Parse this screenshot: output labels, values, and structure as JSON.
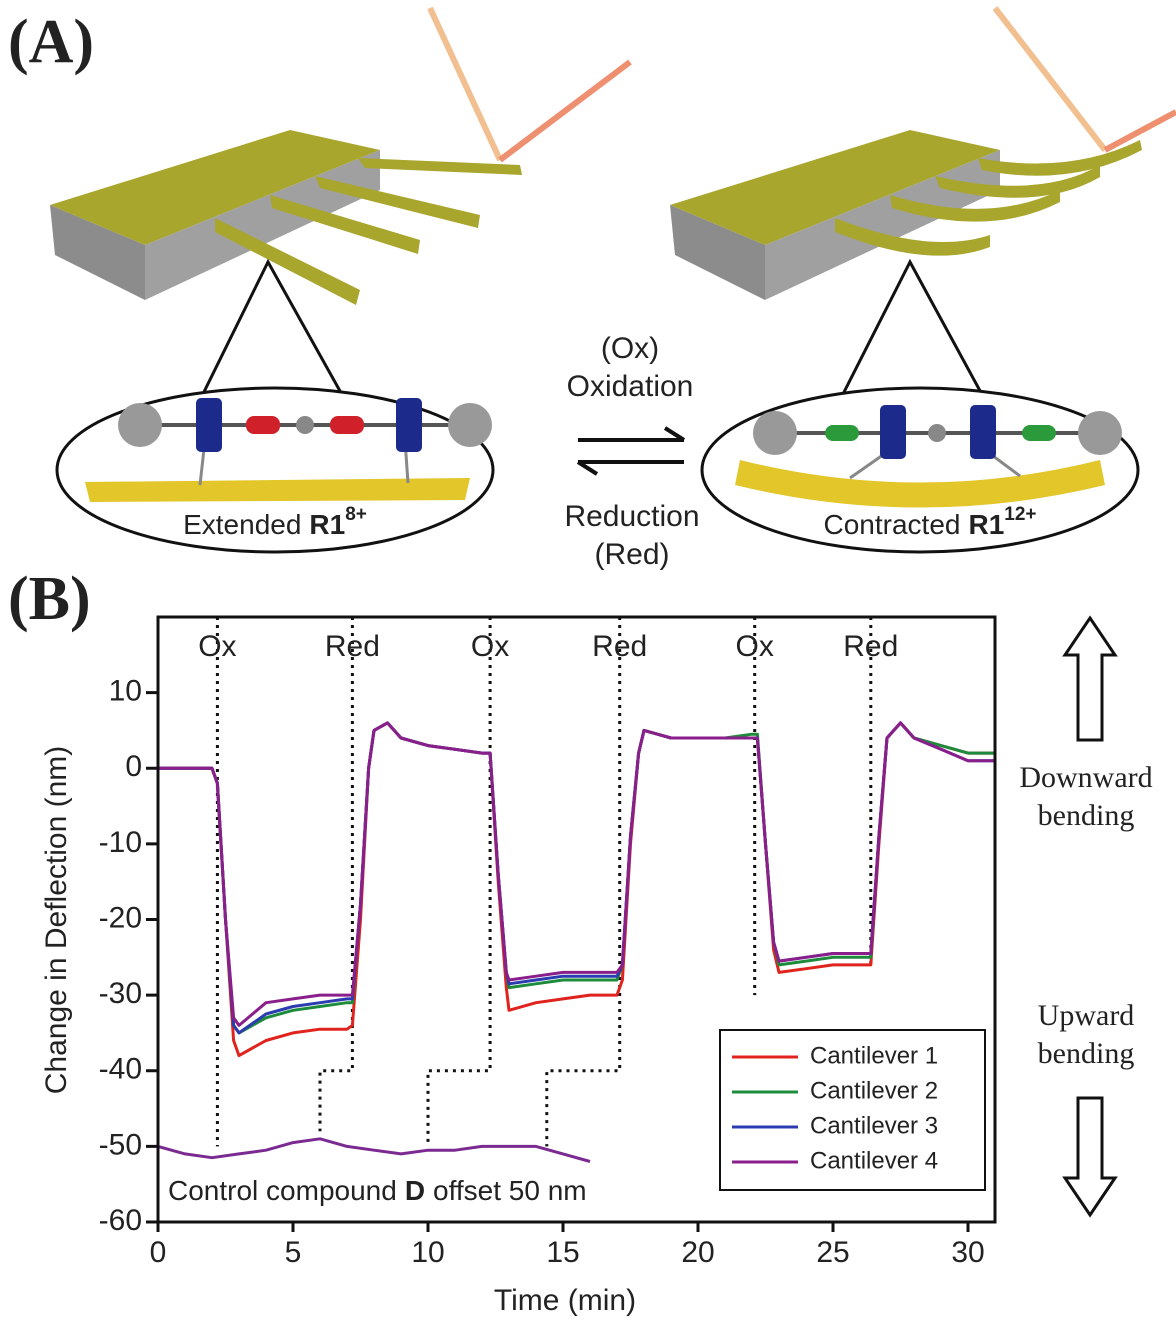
{
  "diagram": {
    "panel_a": "(A)",
    "ox_abbrev": "(Ox)",
    "oxidation": "Oxidation",
    "reduction": "Reduction",
    "red_abbrev": "(Red)",
    "extended": {
      "text": "Extended",
      "compound": "R1",
      "charge": "8+"
    },
    "contracted": {
      "text": "Contracted",
      "compound": "R1",
      "charge": "12+"
    }
  },
  "panel_b": "(B)",
  "side_labels": {
    "downward": [
      "Downward",
      "bending"
    ],
    "upward": [
      "Upward",
      "bending"
    ]
  },
  "chart_data": {
    "type": "line",
    "xlabel": "Time (min)",
    "ylabel": "Change in Deflection (nm)",
    "xlim": [
      0,
      31
    ],
    "ylim": [
      -60,
      20
    ],
    "xticks": [
      0,
      5,
      10,
      15,
      20,
      25,
      30
    ],
    "yticks": [
      -60,
      -50,
      -40,
      -30,
      -20,
      -10,
      0,
      10
    ],
    "legend": "lower right",
    "x": [
      0,
      1,
      2,
      2.2,
      2.5,
      2.8,
      3,
      4,
      5,
      6,
      7,
      7.2,
      7.5,
      7.8,
      8,
      8.5,
      9,
      10,
      11,
      12,
      12.3,
      12.6,
      12.9,
      13,
      14,
      15,
      16,
      17,
      17.2,
      17.5,
      17.8,
      18,
      18.5,
      19,
      20,
      21,
      22,
      22.2,
      22.5,
      22.8,
      23,
      24,
      25,
      26,
      26.4,
      26.7,
      27,
      27.5,
      28,
      29,
      30,
      31
    ],
    "series": [
      {
        "name": "Cantilever 1",
        "color": "#e0231c",
        "values": [
          0,
          0,
          0,
          -2,
          -20,
          -36,
          -38,
          -36,
          -35,
          -34.5,
          -34.5,
          -34,
          -20,
          0,
          5,
          6,
          4,
          3,
          2.5,
          2,
          2,
          -15,
          -29,
          -32,
          -31,
          -30.5,
          -30,
          -30,
          -28,
          -10,
          2,
          5,
          4.5,
          4,
          4,
          4,
          4,
          4,
          -10,
          -24,
          -27,
          -26.5,
          -26,
          -26,
          -26,
          -10,
          4,
          6,
          4,
          3,
          2,
          2
        ]
      },
      {
        "name": "Cantilever 2",
        "color": "#1c8c3c",
        "values": [
          0,
          0,
          0,
          -2,
          -20,
          -34,
          -35,
          -33,
          -32,
          -31.5,
          -31,
          -31,
          -18,
          0,
          5,
          6,
          4,
          3,
          2.5,
          2,
          2,
          -14,
          -27,
          -29,
          -28.5,
          -28,
          -28,
          -28,
          -26,
          -9,
          2,
          5,
          4.5,
          4,
          4,
          4,
          4.5,
          4.5,
          -10,
          -23,
          -26,
          -25.5,
          -25,
          -25,
          -25,
          -9,
          4,
          6,
          4,
          3,
          2,
          2
        ]
      },
      {
        "name": "Cantilever 3",
        "color": "#2a3cb0",
        "values": [
          0,
          0,
          0,
          -2,
          -20,
          -34,
          -35,
          -32.5,
          -31.5,
          -31,
          -30.5,
          -30.5,
          -18,
          0,
          5,
          6,
          4,
          3,
          2.5,
          2,
          2,
          -14,
          -27,
          -28.5,
          -28,
          -27.5,
          -27.5,
          -27.5,
          -26,
          -9,
          2,
          5,
          4.5,
          4,
          4,
          4,
          4,
          4,
          -10,
          -23,
          -25.5,
          -25,
          -24.5,
          -24.5,
          -24.5,
          -9,
          4,
          6,
          4,
          2.5,
          1,
          1
        ]
      },
      {
        "name": "Cantilever 4",
        "color": "#8a1f8c",
        "values": [
          0,
          0,
          0,
          -2,
          -20,
          -33,
          -34,
          -31,
          -30.5,
          -30,
          -30,
          -30,
          -18,
          0,
          5,
          6,
          4,
          3,
          2.5,
          2,
          2,
          -14,
          -27,
          -28,
          -27.5,
          -27,
          -27,
          -27,
          -26,
          -9,
          2,
          5,
          4.5,
          4,
          4,
          4,
          4,
          4,
          -10,
          -23,
          -25.5,
          -25,
          -24.5,
          -24.5,
          -24.5,
          -9,
          4,
          6,
          4,
          2.5,
          1,
          1
        ]
      }
    ],
    "control": {
      "color": "#7a2a90",
      "x": [
        0,
        1,
        2,
        3,
        4,
        5,
        6,
        7,
        8,
        9,
        10,
        11,
        12,
        13,
        14,
        15,
        16
      ],
      "values": [
        -50,
        -51,
        -51.5,
        -51,
        -50.5,
        -49.5,
        -49,
        -50,
        -50.5,
        -51,
        -50.5,
        -50.5,
        -50,
        -50,
        -50,
        -51,
        -52
      ]
    },
    "control_label": {
      "before": "Control compound",
      "bold": "D",
      "after": "offset 50 nm"
    },
    "events": [
      {
        "label": "Ox",
        "line_x": [
          2.2,
          2.2
        ],
        "line_y": [
          20,
          -50
        ]
      },
      {
        "label": "Red",
        "line_x": [
          7.2,
          7.2,
          6,
          6
        ],
        "line_y": [
          20,
          -40,
          -40,
          -48
        ]
      },
      {
        "label": "Ox",
        "line_x": [
          12.3,
          12.3,
          10,
          10
        ],
        "line_y": [
          20,
          -40,
          -40,
          -50
        ]
      },
      {
        "label": "Red",
        "line_x": [
          17.1,
          17.1,
          14.4,
          14.4
        ],
        "line_y": [
          20,
          -40,
          -40,
          -50
        ]
      },
      {
        "label": "Ox",
        "line_x": [
          22.1,
          22.1
        ],
        "line_y": [
          20,
          -30
        ]
      },
      {
        "label": "Red",
        "line_x": [
          26.4,
          26.4
        ],
        "line_y": [
          20,
          -26
        ]
      }
    ]
  }
}
